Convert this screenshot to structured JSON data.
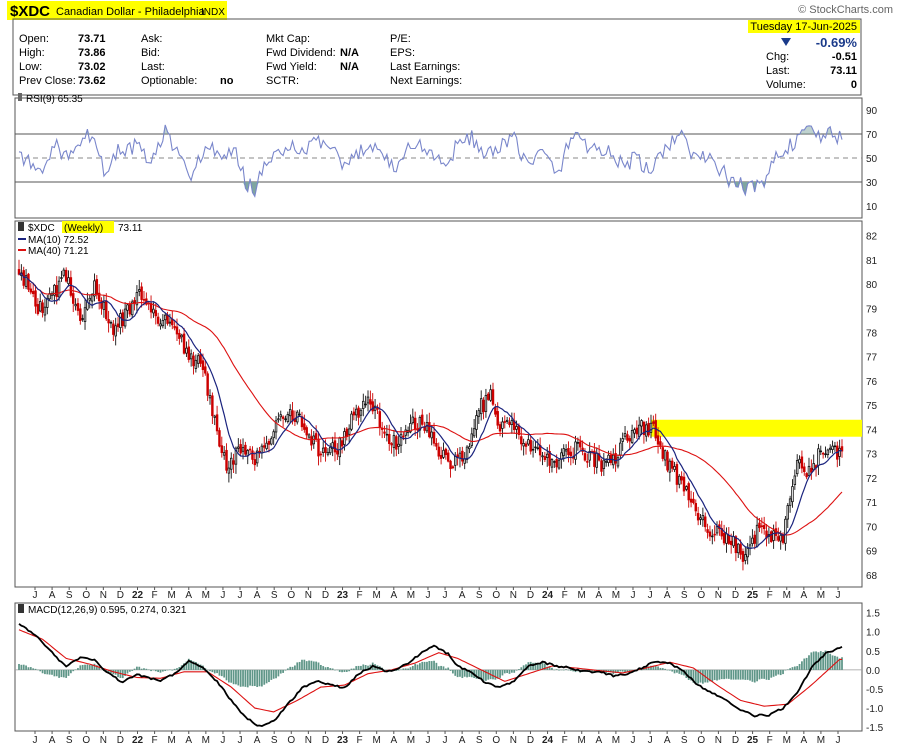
{
  "header": {
    "symbol": "$XDC",
    "name": "Canadian Dollar - Philadelphia",
    "exchange": "INDX",
    "watermark": "© StockCharts.com",
    "date": "Tuesday  17-Jun-2025",
    "change_pct": "-0.69%",
    "quote": [
      {
        "label": "Open:",
        "value": "73.71"
      },
      {
        "label": "High:",
        "value": "73.86"
      },
      {
        "label": "Low:",
        "value": "73.02"
      },
      {
        "label": "Prev Close:",
        "value": "73.62"
      },
      {
        "label": "Ask:",
        "value": ""
      },
      {
        "label": "Bid:",
        "value": ""
      },
      {
        "label": "Last:",
        "value": ""
      },
      {
        "label": "Optionable:",
        "value": "no"
      },
      {
        "label": "Mkt Cap:",
        "value": ""
      },
      {
        "label": "Fwd Dividend:",
        "value": "N/A"
      },
      {
        "label": "Fwd Yield:",
        "value": "N/A"
      },
      {
        "label": "SCTR:",
        "value": ""
      },
      {
        "label": "P/E:",
        "value": ""
      },
      {
        "label": "EPS:",
        "value": ""
      },
      {
        "label": "Last Earnings:",
        "value": ""
      },
      {
        "label": "Next Earnings:",
        "value": ""
      }
    ],
    "right_quote": [
      {
        "label": "Chg:",
        "value": "-0.51"
      },
      {
        "label": "Last:",
        "value": "73.11"
      },
      {
        "label": "Volume:",
        "value": "0"
      }
    ]
  },
  "colors": {
    "up_candle": "#111111",
    "down_candle": "#cc0000",
    "ma10": "#1a237e",
    "ma40": "#dd1111",
    "rsi_line": "#7986cb",
    "rsi_fill": "#7fa6a0",
    "macd_line": "#000000",
    "signal_line": "#dd1111",
    "histogram": "#5f9688",
    "highlight": "#ffff00",
    "change_down": "#1a3a8a"
  },
  "chart_data": [
    {
      "type": "line",
      "panel": "rsi",
      "legend": "RSI(9) 65.35",
      "ylim": [
        0,
        100
      ],
      "y_ticks": [
        10,
        30,
        50,
        70,
        90
      ],
      "reference_lines": [
        30,
        50,
        70
      ],
      "anchors": [
        [
          0,
          55
        ],
        [
          8,
          38
        ],
        [
          15,
          60
        ],
        [
          22,
          50
        ],
        [
          30,
          70
        ],
        [
          36,
          40
        ],
        [
          42,
          55
        ],
        [
          50,
          60
        ],
        [
          56,
          45
        ],
        [
          62,
          72
        ],
        [
          68,
          50
        ],
        [
          72,
          35
        ],
        [
          80,
          60
        ],
        [
          86,
          48
        ],
        [
          92,
          55
        ],
        [
          96,
          30
        ],
        [
          100,
          24
        ],
        [
          104,
          40
        ],
        [
          108,
          52
        ],
        [
          114,
          60
        ],
        [
          120,
          52
        ],
        [
          126,
          66
        ],
        [
          132,
          58
        ],
        [
          138,
          40
        ],
        [
          144,
          55
        ],
        [
          150,
          62
        ],
        [
          156,
          50
        ],
        [
          160,
          40
        ],
        [
          166,
          62
        ],
        [
          174,
          56
        ],
        [
          180,
          44
        ],
        [
          186,
          60
        ],
        [
          192,
          68
        ],
        [
          198,
          50
        ],
        [
          204,
          58
        ],
        [
          210,
          66
        ],
        [
          216,
          44
        ],
        [
          222,
          55
        ],
        [
          228,
          36
        ],
        [
          232,
          56
        ],
        [
          236,
          72
        ],
        [
          240,
          62
        ],
        [
          244,
          58
        ],
        [
          250,
          55
        ],
        [
          256,
          44
        ],
        [
          262,
          50
        ],
        [
          268,
          36
        ],
        [
          274,
          58
        ],
        [
          280,
          72
        ],
        [
          284,
          56
        ],
        [
          290,
          50
        ],
        [
          296,
          44
        ],
        [
          302,
          30
        ],
        [
          308,
          26
        ],
        [
          312,
          24
        ],
        [
          316,
          32
        ],
        [
          322,
          54
        ],
        [
          328,
          62
        ],
        [
          334,
          72
        ],
        [
          340,
          66
        ],
        [
          344,
          74
        ],
        [
          348,
          66
        ]
      ],
      "last": 65.35
    },
    {
      "type": "candlestick",
      "panel": "price",
      "title": "$XDC (Weekly) 73.11",
      "interval": "Weekly",
      "ylim": [
        67.5,
        82.6
      ],
      "y_ticks": [
        68,
        69,
        70,
        71,
        72,
        73,
        74,
        75,
        76,
        77,
        78,
        79,
        80,
        81,
        82
      ],
      "x_ticks": [
        "J",
        "A",
        "S",
        "O",
        "N",
        "D",
        "22",
        "F",
        "M",
        "A",
        "M",
        "J",
        "J",
        "A",
        "S",
        "O",
        "N",
        "D",
        "23",
        "F",
        "M",
        "A",
        "M",
        "J",
        "J",
        "A",
        "S",
        "O",
        "N",
        "D",
        "24",
        "F",
        "M",
        "A",
        "M",
        "J",
        "J",
        "A",
        "S",
        "O",
        "N",
        "D",
        "25",
        "F",
        "M",
        "A",
        "M",
        "J"
      ],
      "bold_ticks": [
        "22",
        "23",
        "24",
        "25"
      ],
      "close_anchors": [
        [
          0,
          80.6
        ],
        [
          8,
          79.0
        ],
        [
          14,
          79.5
        ],
        [
          20,
          80.4
        ],
        [
          26,
          78.6
        ],
        [
          32,
          79.8
        ],
        [
          40,
          78.1
        ],
        [
          46,
          78.9
        ],
        [
          52,
          79.6
        ],
        [
          60,
          78.5
        ],
        [
          66,
          78.2
        ],
        [
          72,
          77.1
        ],
        [
          78,
          76.5
        ],
        [
          84,
          74.0
        ],
        [
          88,
          72.6
        ],
        [
          92,
          73.0
        ],
        [
          96,
          72.9
        ],
        [
          102,
          72.8
        ],
        [
          106,
          73.5
        ],
        [
          112,
          74.8
        ],
        [
          118,
          74.6
        ],
        [
          124,
          73.5
        ],
        [
          130,
          73.0
        ],
        [
          136,
          73.3
        ],
        [
          142,
          74.6
        ],
        [
          148,
          75.1
        ],
        [
          152,
          74.6
        ],
        [
          156,
          73.6
        ],
        [
          160,
          73.4
        ],
        [
          166,
          74.3
        ],
        [
          172,
          74.1
        ],
        [
          178,
          73.1
        ],
        [
          184,
          72.6
        ],
        [
          188,
          72.8
        ],
        [
          192,
          73.9
        ],
        [
          196,
          75.0
        ],
        [
          200,
          75.3
        ],
        [
          204,
          74.1
        ],
        [
          208,
          74.3
        ],
        [
          214,
          73.5
        ],
        [
          222,
          72.7
        ],
        [
          230,
          72.8
        ],
        [
          236,
          73.2
        ],
        [
          242,
          72.9
        ],
        [
          248,
          72.5
        ],
        [
          254,
          73.0
        ],
        [
          260,
          74.0
        ],
        [
          264,
          74.1
        ],
        [
          270,
          73.9
        ],
        [
          276,
          72.4
        ],
        [
          282,
          71.6
        ],
        [
          288,
          70.6
        ],
        [
          294,
          69.8
        ],
        [
          300,
          69.4
        ],
        [
          304,
          69.2
        ],
        [
          308,
          68.5
        ],
        [
          310,
          69.0
        ],
        [
          314,
          70.0
        ],
        [
          318,
          69.6
        ],
        [
          324,
          69.5
        ],
        [
          330,
          72.6
        ],
        [
          334,
          72.2
        ],
        [
          340,
          73.0
        ],
        [
          344,
          73.4
        ],
        [
          347,
          73.11
        ]
      ],
      "last": 73.11,
      "ma10_last": 72.52,
      "ma40_last": 71.21,
      "series": [
        {
          "name": "MA(10) 72.52"
        },
        {
          "name": "MA(40) 71.21"
        }
      ],
      "highlight_zone": {
        "x_start": 268,
        "x_end": 350,
        "y_low": 73.7,
        "y_high": 74.4
      }
    },
    {
      "type": "line",
      "panel": "macd",
      "legend": "MACD(12,26,9) 0.595, 0.274, 0.321",
      "ylim": [
        -1.6,
        1.75
      ],
      "y_ticks": [
        -1.5,
        -1.0,
        -0.5,
        0.0,
        0.5,
        1.0,
        1.5
      ],
      "y_tick_labels": [
        "-1.5",
        "-1.0",
        "-0.5",
        "0.0",
        "0.5",
        "1.0",
        "1.5"
      ],
      "macd_anchors": [
        [
          0,
          1.2
        ],
        [
          8,
          0.85
        ],
        [
          14,
          0.45
        ],
        [
          20,
          0.08
        ],
        [
          26,
          0.32
        ],
        [
          32,
          0.25
        ],
        [
          38,
          -0.1
        ],
        [
          44,
          -0.32
        ],
        [
          50,
          -0.12
        ],
        [
          56,
          -0.22
        ],
        [
          60,
          -0.28
        ],
        [
          66,
          -0.1
        ],
        [
          72,
          0.22
        ],
        [
          78,
          0.05
        ],
        [
          84,
          -0.3
        ],
        [
          90,
          -0.8
        ],
        [
          96,
          -1.25
        ],
        [
          102,
          -1.48
        ],
        [
          108,
          -1.35
        ],
        [
          114,
          -0.9
        ],
        [
          120,
          -0.48
        ],
        [
          126,
          -0.28
        ],
        [
          132,
          -0.38
        ],
        [
          138,
          -0.48
        ],
        [
          144,
          -0.1
        ],
        [
          150,
          0.1
        ],
        [
          156,
          -0.05
        ],
        [
          160,
          0.02
        ],
        [
          166,
          0.22
        ],
        [
          172,
          0.5
        ],
        [
          176,
          0.62
        ],
        [
          182,
          0.42
        ],
        [
          186,
          0.1
        ],
        [
          192,
          -0.05
        ],
        [
          198,
          -0.35
        ],
        [
          204,
          -0.45
        ],
        [
          210,
          -0.3
        ],
        [
          216,
          0.1
        ],
        [
          222,
          0.2
        ],
        [
          228,
          0.1
        ],
        [
          234,
          0.05
        ],
        [
          240,
          -0.05
        ],
        [
          246,
          -0.05
        ],
        [
          252,
          -0.15
        ],
        [
          258,
          -0.1
        ],
        [
          264,
          0.05
        ],
        [
          270,
          0.22
        ],
        [
          276,
          0.18
        ],
        [
          282,
          -0.05
        ],
        [
          288,
          -0.4
        ],
        [
          294,
          -0.6
        ],
        [
          300,
          -0.8
        ],
        [
          306,
          -1.05
        ],
        [
          312,
          -1.2
        ],
        [
          318,
          -1.18
        ],
        [
          324,
          -1.0
        ],
        [
          330,
          -0.6
        ],
        [
          336,
          0.05
        ],
        [
          342,
          0.42
        ],
        [
          348,
          0.595
        ]
      ],
      "signal_anchors": [
        [
          0,
          1.05
        ],
        [
          10,
          0.8
        ],
        [
          20,
          0.3
        ],
        [
          30,
          0.15
        ],
        [
          40,
          -0.05
        ],
        [
          50,
          -0.2
        ],
        [
          60,
          -0.22
        ],
        [
          70,
          -0.05
        ],
        [
          80,
          -0.05
        ],
        [
          90,
          -0.45
        ],
        [
          100,
          -1.0
        ],
        [
          108,
          -1.1
        ],
        [
          118,
          -0.8
        ],
        [
          128,
          -0.45
        ],
        [
          138,
          -0.4
        ],
        [
          148,
          -0.1
        ],
        [
          158,
          0.0
        ],
        [
          168,
          0.18
        ],
        [
          178,
          0.45
        ],
        [
          186,
          0.3
        ],
        [
          196,
          0.0
        ],
        [
          206,
          -0.3
        ],
        [
          216,
          -0.1
        ],
        [
          226,
          0.1
        ],
        [
          236,
          0.05
        ],
        [
          246,
          -0.02
        ],
        [
          256,
          -0.08
        ],
        [
          266,
          0.05
        ],
        [
          276,
          0.2
        ],
        [
          286,
          0.05
        ],
        [
          296,
          -0.4
        ],
        [
          306,
          -0.8
        ],
        [
          316,
          -0.95
        ],
        [
          326,
          -0.9
        ],
        [
          336,
          -0.4
        ],
        [
          344,
          0.05
        ],
        [
          348,
          0.274
        ]
      ],
      "histogram_last": 0.321,
      "series": [
        {
          "name": "MACD(12,26,9)"
        }
      ]
    }
  ]
}
